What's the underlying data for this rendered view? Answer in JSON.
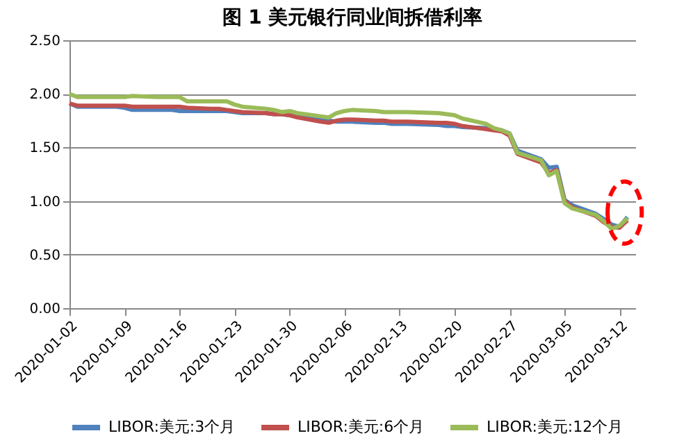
{
  "chart_data": {
    "type": "line",
    "title": "图 1  美元银行同业间拆借利率",
    "x": [
      "2020-01-02",
      "2020-01-03",
      "2020-01-06",
      "2020-01-07",
      "2020-01-08",
      "2020-01-09",
      "2020-01-10",
      "2020-01-13",
      "2020-01-14",
      "2020-01-15",
      "2020-01-16",
      "2020-01-17",
      "2020-01-20",
      "2020-01-21",
      "2020-01-22",
      "2020-01-23",
      "2020-01-24",
      "2020-01-27",
      "2020-01-28",
      "2020-01-29",
      "2020-01-30",
      "2020-01-31",
      "2020-02-03",
      "2020-02-04",
      "2020-02-05",
      "2020-02-06",
      "2020-02-07",
      "2020-02-10",
      "2020-02-11",
      "2020-02-12",
      "2020-02-13",
      "2020-02-14",
      "2020-02-18",
      "2020-02-19",
      "2020-02-20",
      "2020-02-21",
      "2020-02-24",
      "2020-02-25",
      "2020-02-26",
      "2020-02-27",
      "2020-02-28",
      "2020-03-02",
      "2020-03-03",
      "2020-03-04",
      "2020-03-05",
      "2020-03-06",
      "2020-03-09",
      "2020-03-10",
      "2020-03-11",
      "2020-03-12",
      "2020-03-13"
    ],
    "series": [
      {
        "name": "LIBOR:美元:3个月",
        "color": "#4f81bd",
        "values": [
          1.91,
          1.88,
          1.88,
          1.88,
          1.88,
          1.87,
          1.85,
          1.85,
          1.85,
          1.85,
          1.84,
          1.84,
          1.84,
          1.84,
          1.84,
          1.83,
          1.82,
          1.82,
          1.81,
          1.81,
          1.8,
          1.79,
          1.76,
          1.75,
          1.74,
          1.74,
          1.74,
          1.73,
          1.73,
          1.72,
          1.72,
          1.72,
          1.71,
          1.7,
          1.7,
          1.69,
          1.68,
          1.67,
          1.66,
          1.63,
          1.47,
          1.39,
          1.31,
          1.32,
          1.01,
          0.96,
          0.88,
          0.83,
          0.78,
          0.76,
          0.85
        ]
      },
      {
        "name": "LIBOR:美元:6个月",
        "color": "#c0504d",
        "values": [
          1.91,
          1.89,
          1.89,
          1.89,
          1.89,
          1.89,
          1.88,
          1.88,
          1.88,
          1.88,
          1.88,
          1.87,
          1.86,
          1.86,
          1.85,
          1.84,
          1.83,
          1.82,
          1.81,
          1.81,
          1.8,
          1.78,
          1.74,
          1.73,
          1.75,
          1.76,
          1.76,
          1.75,
          1.75,
          1.74,
          1.74,
          1.74,
          1.73,
          1.73,
          1.72,
          1.7,
          1.67,
          1.66,
          1.65,
          1.61,
          1.44,
          1.36,
          1.26,
          1.29,
          1.0,
          0.94,
          0.86,
          0.8,
          0.76,
          0.75,
          0.82
        ]
      },
      {
        "name": "LIBOR:美元:12个月",
        "color": "#9bbb59",
        "values": [
          2.0,
          1.97,
          1.97,
          1.97,
          1.97,
          1.97,
          1.98,
          1.97,
          1.97,
          1.97,
          1.97,
          1.93,
          1.93,
          1.93,
          1.93,
          1.9,
          1.88,
          1.86,
          1.85,
          1.83,
          1.84,
          1.82,
          1.79,
          1.78,
          1.82,
          1.84,
          1.85,
          1.84,
          1.83,
          1.83,
          1.83,
          1.83,
          1.82,
          1.81,
          1.8,
          1.77,
          1.72,
          1.68,
          1.66,
          1.63,
          1.45,
          1.38,
          1.24,
          1.28,
          0.98,
          0.93,
          0.87,
          0.81,
          0.74,
          0.77,
          0.84
        ]
      }
    ],
    "xlim": [
      "2020-01-02",
      "2020-03-14"
    ],
    "xticks": [
      "2020-01-02",
      "2020-01-09",
      "2020-01-16",
      "2020-01-23",
      "2020-01-30",
      "2020-02-06",
      "2020-02-13",
      "2020-02-20",
      "2020-02-27",
      "2020-03-05",
      "2020-03-12"
    ],
    "ylim": [
      0,
      2.5
    ],
    "yticks": [
      {
        "value": 0,
        "label": "0.00"
      },
      {
        "value": 0.5,
        "label": "0.50"
      },
      {
        "value": 1,
        "label": "1.00"
      },
      {
        "value": 1.5,
        "label": "1.50"
      },
      {
        "value": 2,
        "label": "2.00"
      },
      {
        "value": 2.5,
        "label": "2.50"
      }
    ],
    "grid": "y",
    "legend": "bottom",
    "marker": "none",
    "line_style": "solid"
  }
}
